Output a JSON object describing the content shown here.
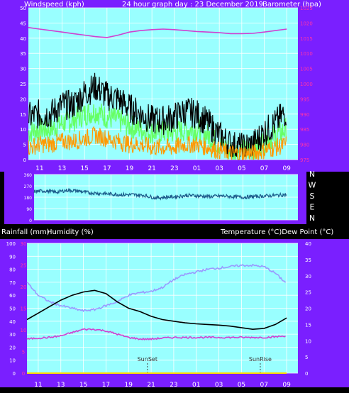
{
  "header": {
    "left": "Windspeed (kph)",
    "center": "24 hour graph day : 23 December 2019",
    "right": "Barometer (hpa)"
  },
  "middle_header": {
    "left": "Rainfall (mm)",
    "left2": "Humidity (%)",
    "right": "Temperature (°C)Dew Point (°C)"
  },
  "colors": {
    "frame": "#7a1fff",
    "plot_bg": "#99ffff",
    "grid": "#ffffff",
    "windspeed": "#000000",
    "gust_band": "#66ff66",
    "wind_avg": "#ff9900",
    "barometer": "#d040d0",
    "direction": "#1a5a8a",
    "temperature": "#000000",
    "humidity": "#9999ff",
    "dew_point": "#d040d0",
    "rainfall": "#ffd700",
    "axis_text": "#ffffff",
    "axis_text_secondary": "#ff33aa"
  },
  "chart_data": [
    {
      "type": "line",
      "title": "24 hour graph day : 23 December 2019",
      "xlabel": "",
      "ylabel": "Windspeed (kph)",
      "ylabel_right": "Barometer (hpa)",
      "x_ticks": [
        "11",
        "13",
        "15",
        "17",
        "19",
        "21",
        "23",
        "01",
        "03",
        "05",
        "07",
        "09"
      ],
      "y_ticks": [
        0,
        5,
        10,
        15,
        20,
        25,
        30,
        35,
        40,
        45,
        50
      ],
      "ylim": [
        0,
        50
      ],
      "y2_ticks": [
        975,
        980,
        985,
        990,
        995,
        1000,
        1005,
        1010,
        1015,
        1020,
        1025
      ],
      "y2lim": [
        975,
        1025
      ],
      "series": [
        {
          "name": "Windspeed (kph)",
          "role": "gust",
          "x": [
            "10:00",
            "11:00",
            "12:00",
            "13:00",
            "14:00",
            "15:00",
            "16:00",
            "17:00",
            "18:00",
            "19:00",
            "20:00",
            "21:00",
            "22:00",
            "23:00",
            "00:00",
            "01:00",
            "02:00",
            "03:00",
            "04:00",
            "05:00",
            "06:00",
            "07:00",
            "08:00",
            "09:00"
          ],
          "values": [
            14,
            15,
            15,
            18,
            18,
            22,
            24,
            21,
            20,
            17,
            15,
            13,
            13,
            14,
            16,
            15,
            12,
            8,
            5,
            4,
            5,
            9,
            12,
            16
          ]
        },
        {
          "role": "gust_band",
          "x": [
            "10:00",
            "11:00",
            "12:00",
            "13:00",
            "14:00",
            "15:00",
            "16:00",
            "17:00",
            "18:00",
            "19:00",
            "20:00",
            "21:00",
            "22:00",
            "23:00",
            "00:00",
            "01:00",
            "02:00",
            "03:00",
            "04:00",
            "05:00",
            "06:00",
            "07:00",
            "08:00",
            "09:00"
          ],
          "values": [
            9,
            10,
            10,
            12,
            13,
            15,
            16,
            14,
            13,
            11,
            10,
            9,
            9,
            9,
            10,
            10,
            8,
            5,
            3,
            3,
            3,
            6,
            8,
            10
          ]
        },
        {
          "role": "average",
          "x": [
            "10:00",
            "11:00",
            "12:00",
            "13:00",
            "14:00",
            "15:00",
            "16:00",
            "17:00",
            "18:00",
            "19:00",
            "20:00",
            "21:00",
            "22:00",
            "23:00",
            "00:00",
            "01:00",
            "02:00",
            "03:00",
            "04:00",
            "05:00",
            "06:00",
            "07:00",
            "08:00",
            "09:00"
          ],
          "values": [
            4,
            5,
            5,
            6,
            6,
            7,
            8,
            7,
            6,
            5,
            5,
            4,
            4,
            4,
            5,
            5,
            4,
            3,
            2,
            2,
            2,
            3,
            4,
            5
          ]
        },
        {
          "name": "Barometer (hpa)",
          "axis": "right",
          "x": [
            "10:00",
            "11:00",
            "12:00",
            "13:00",
            "14:00",
            "15:00",
            "16:00",
            "17:00",
            "18:00",
            "19:00",
            "20:00",
            "21:00",
            "22:00",
            "23:00",
            "00:00",
            "01:00",
            "02:00",
            "03:00",
            "04:00",
            "05:00",
            "06:00",
            "07:00",
            "08:00",
            "09:00"
          ],
          "values": [
            1018.5,
            1018.0,
            1017.5,
            1017.0,
            1016.5,
            1016.0,
            1015.5,
            1015.2,
            1016.0,
            1017.0,
            1017.5,
            1017.8,
            1018.0,
            1017.8,
            1017.5,
            1017.2,
            1017.0,
            1016.8,
            1016.5,
            1016.5,
            1016.6,
            1017.0,
            1017.5,
            1018.0
          ]
        }
      ]
    },
    {
      "type": "line",
      "title": "",
      "ylabel": "",
      "y_ticks": [
        0,
        90,
        180,
        270,
        360
      ],
      "ylim": [
        0,
        360
      ],
      "right_labels": [
        "N",
        "W",
        "S",
        "E",
        "N"
      ],
      "series": [
        {
          "role": "wind_direction",
          "x": [
            "10:00",
            "11:00",
            "12:00",
            "13:00",
            "14:00",
            "15:00",
            "16:00",
            "17:00",
            "18:00",
            "19:00",
            "20:00",
            "21:00",
            "22:00",
            "23:00",
            "00:00",
            "01:00",
            "02:00",
            "03:00",
            "04:00",
            "05:00",
            "06:00",
            "07:00",
            "08:00",
            "09:00"
          ],
          "values": [
            225,
            230,
            220,
            235,
            230,
            215,
            210,
            205,
            200,
            200,
            195,
            175,
            180,
            185,
            195,
            190,
            185,
            190,
            185,
            180,
            185,
            190,
            195,
            200
          ]
        }
      ]
    },
    {
      "type": "line",
      "title": "",
      "ylabel": "Humidity (%)",
      "ylabel_secondary": "Rainfall (mm)",
      "ylabel_right": "Temperature (°C)Dew Point (°C)",
      "x_ticks": [
        "11",
        "13",
        "15",
        "17",
        "19",
        "21",
        "23",
        "01",
        "03",
        "05",
        "07",
        "09"
      ],
      "y_ticks": [
        0,
        10,
        20,
        30,
        40,
        50,
        60,
        70,
        80,
        90,
        100
      ],
      "ylim": [
        0,
        100
      ],
      "y_ticks_secondary": [
        0,
        5,
        10,
        15,
        20,
        25,
        30
      ],
      "ylim_secondary": [
        0,
        30
      ],
      "y2_ticks": [
        0,
        5,
        10,
        15,
        20,
        25,
        30,
        35,
        40
      ],
      "y2lim": [
        0,
        40
      ],
      "annotations": [
        {
          "text": "SunSet",
          "x": "20:40"
        },
        {
          "text": "SunRise",
          "x": "06:40"
        }
      ],
      "series": [
        {
          "name": "Humidity (%)",
          "x": [
            "10:00",
            "11:00",
            "12:00",
            "13:00",
            "14:00",
            "15:00",
            "16:00",
            "17:00",
            "18:00",
            "19:00",
            "20:00",
            "21:00",
            "22:00",
            "23:00",
            "00:00",
            "01:00",
            "02:00",
            "03:00",
            "04:00",
            "05:00",
            "06:00",
            "07:00",
            "08:00",
            "09:00"
          ],
          "values": [
            70,
            60,
            55,
            52,
            50,
            48,
            49,
            52,
            55,
            60,
            62,
            63,
            66,
            72,
            76,
            78,
            80,
            81,
            82,
            83,
            83,
            82,
            77,
            69
          ]
        },
        {
          "name": "Temperature (°C)",
          "axis": "right",
          "x": [
            "10:00",
            "11:00",
            "12:00",
            "13:00",
            "14:00",
            "15:00",
            "16:00",
            "17:00",
            "18:00",
            "19:00",
            "20:00",
            "21:00",
            "22:00",
            "23:00",
            "00:00",
            "01:00",
            "02:00",
            "03:00",
            "04:00",
            "05:00",
            "06:00",
            "07:00",
            "08:00",
            "09:00"
          ],
          "values": [
            16.5,
            18.5,
            20.5,
            22.5,
            24,
            25,
            25.5,
            24.5,
            22,
            20,
            19,
            17.5,
            16.5,
            16,
            15.5,
            15.2,
            15,
            14.8,
            14.5,
            14,
            13.5,
            13.8,
            15,
            17
          ]
        },
        {
          "name": "Dew Point (°C)",
          "axis": "right",
          "x": [
            "10:00",
            "11:00",
            "12:00",
            "13:00",
            "14:00",
            "15:00",
            "16:00",
            "17:00",
            "18:00",
            "19:00",
            "20:00",
            "21:00",
            "22:00",
            "23:00",
            "00:00",
            "01:00",
            "02:00",
            "03:00",
            "04:00",
            "05:00",
            "06:00",
            "07:00",
            "08:00",
            "09:00"
          ],
          "values": [
            10.5,
            10.8,
            11,
            11.5,
            12.5,
            13.5,
            13.5,
            13,
            12,
            11,
            10.5,
            10.5,
            10.8,
            11,
            11,
            11,
            11,
            11,
            11,
            11,
            11,
            11,
            11.2,
            11.5
          ]
        },
        {
          "name": "Rainfall (mm)",
          "axis": "secondary",
          "x": [
            "10:00",
            "09:00"
          ],
          "values": [
            0,
            0
          ]
        }
      ]
    }
  ]
}
